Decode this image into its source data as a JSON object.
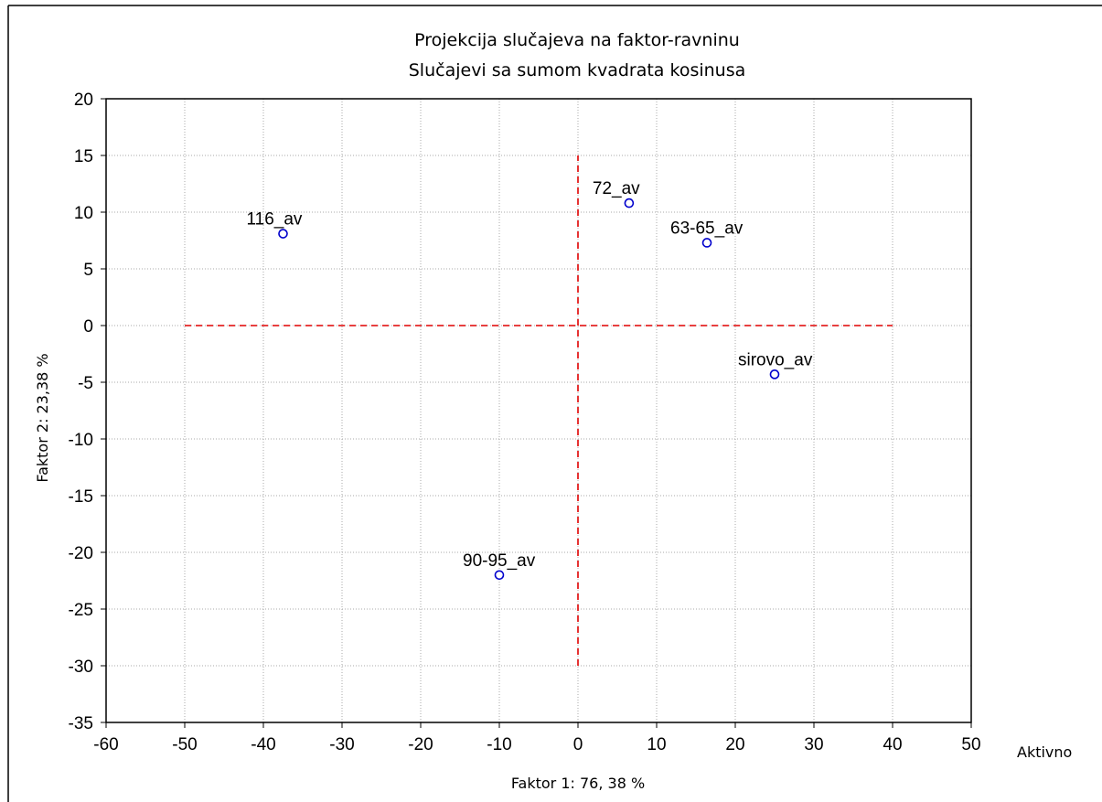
{
  "chart_data": {
    "type": "scatter",
    "title": "Projekcija slučajeva na faktor-ravninu",
    "subtitle": "Slučajevi sa sumom kvadrata kosinusa",
    "xlabel": "Faktor 1: 76, 38 %",
    "ylabel": "Faktor 2: 23,38 %",
    "legend_label": "Aktivno",
    "xlim": [
      -60,
      50
    ],
    "ylim": [
      -35,
      20
    ],
    "xticks": [
      -60,
      -50,
      -40,
      -30,
      -20,
      -10,
      0,
      10,
      20,
      30,
      40,
      50
    ],
    "yticks": [
      -35,
      -30,
      -25,
      -20,
      -15,
      -10,
      -5,
      0,
      5,
      10,
      15,
      20
    ],
    "grid": true,
    "reference_lines": {
      "horizontal": {
        "y": 0,
        "x_from": -50,
        "x_to": 40
      },
      "vertical": {
        "x": 0,
        "y_from": -30,
        "y_to": 15
      },
      "color": "#e00000"
    },
    "point_color": "#0000cc",
    "points": [
      {
        "label": "116_av",
        "x": -37.5,
        "y": 8.1
      },
      {
        "label": "72_av",
        "x": 6.5,
        "y": 10.8
      },
      {
        "label": "63-65_av",
        "x": 16.4,
        "y": 7.3
      },
      {
        "label": "sirovo_av",
        "x": 25.0,
        "y": -4.3
      },
      {
        "label": "90-95_av",
        "x": -10.0,
        "y": -22.0
      }
    ]
  }
}
